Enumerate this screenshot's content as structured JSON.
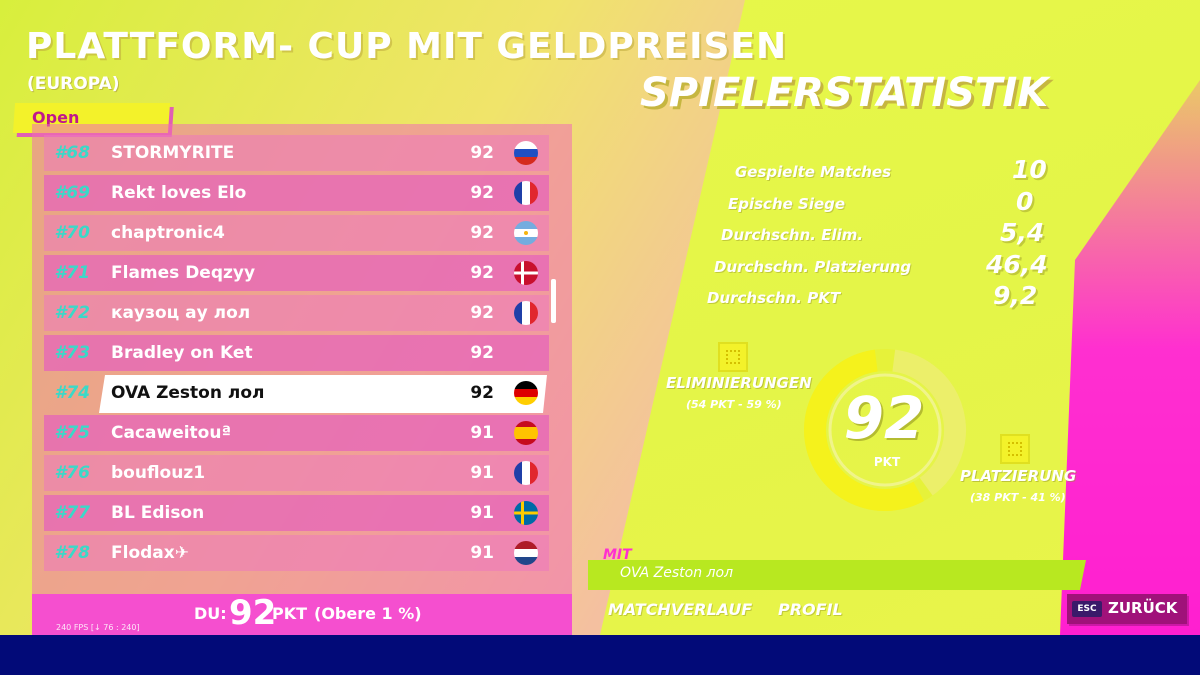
{
  "header": {
    "title": "PLATTFORM- CUP MIT GELDPREISEN",
    "region": "(EUROPA)",
    "tab_label": "Open"
  },
  "leaderboard": {
    "rows": [
      {
        "rank": "#68",
        "name": "STORMYRITE",
        "points": "92",
        "flag": "russia-flag"
      },
      {
        "rank": "#69",
        "name": "Rekt loves Elo",
        "points": "92",
        "flag": "france-flag"
      },
      {
        "rank": "#70",
        "name": "chaptronic4",
        "points": "92",
        "flag": "argentina-flag"
      },
      {
        "rank": "#71",
        "name": "Flames Deqzyy",
        "points": "92",
        "flag": "denmark-flag"
      },
      {
        "rank": "#72",
        "name": "каузоц ау лол",
        "points": "92",
        "flag": "france-flag"
      },
      {
        "rank": "#73",
        "name": "Bradley on Ket",
        "points": "92",
        "flag": ""
      },
      {
        "rank": "#74",
        "name": "OVA Zeston лол",
        "points": "92",
        "flag": "germany-flag",
        "selected": true
      },
      {
        "rank": "#75",
        "name": "Cacaweitouª",
        "points": "91",
        "flag": "spain-flag"
      },
      {
        "rank": "#76",
        "name": "bouflouz1",
        "points": "91",
        "flag": "france-flag"
      },
      {
        "rank": "#77",
        "name": "BL Edison",
        "points": "91",
        "flag": "sweden-flag"
      },
      {
        "rank": "#78",
        "name": "Flodax✈",
        "points": "91",
        "flag": "netherlands-flag"
      }
    ]
  },
  "footer": {
    "du_label": "DU:",
    "du_value": "92",
    "du_unit": "PKT",
    "du_rank": "(Obere 1 %)",
    "fps_text": "240 FPS [↓ 76 : 240]"
  },
  "stats": {
    "title": "SPIELERSTATISTIK",
    "items": [
      {
        "label": "Gespielte Matches",
        "value": "10"
      },
      {
        "label": "Epische Siege",
        "value": "0"
      },
      {
        "label": "Durchschn. Elim.",
        "value": "5,4"
      },
      {
        "label": "Durchschn. Platzierung",
        "value": "46,4"
      },
      {
        "label": "Durchschn. PKT",
        "value": "9,2"
      }
    ],
    "donut": {
      "total": "92",
      "unit": "PKT",
      "eliminations_label": "ELIMINIERUNGEN",
      "eliminations_sub": "(54 PKT - 59 %)",
      "eliminations_fraction": 0.59,
      "placement_label": "PLATZIERUNG",
      "placement_sub": "(38 PKT - 41 %)",
      "placement_fraction": 0.41
    }
  },
  "profile": {
    "mit_label": "MIT",
    "player_name": "OVA Zeston лол",
    "link_match_history": "MATCHVERLAUF",
    "link_profile": "PROFIL",
    "back_key": "ESC",
    "back_label": "ZURÜCK"
  },
  "colors": {
    "accent_yellow": "#f3f22a",
    "rank_teal": "#3ad9c8",
    "magenta": "#ff2fd0",
    "navy": "#020a78"
  }
}
